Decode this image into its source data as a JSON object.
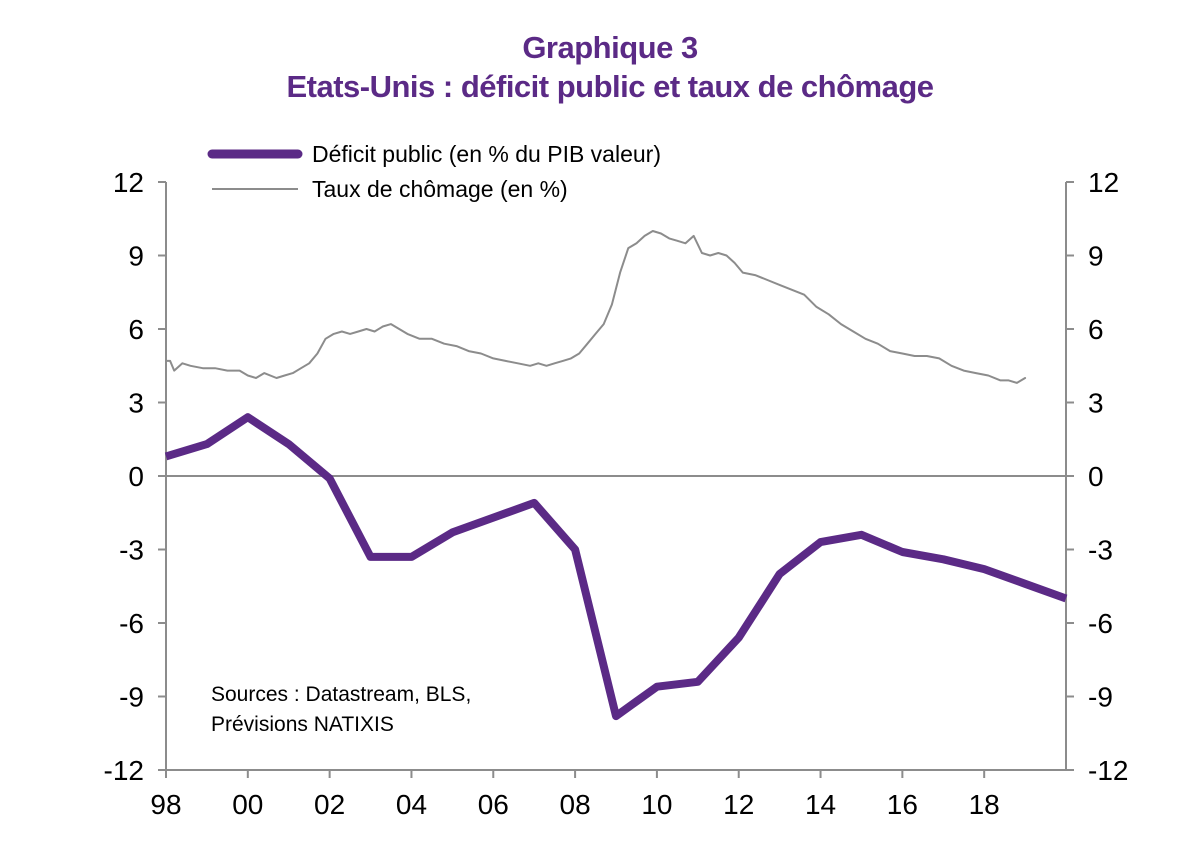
{
  "chart_data": {
    "type": "line",
    "title": "Graphique 3",
    "subtitle": "Etats-Unis : déficit public et taux de chômage",
    "xlabel": "",
    "ylabel": "",
    "x_ticks": [
      "98",
      "00",
      "02",
      "04",
      "06",
      "08",
      "10",
      "12",
      "14",
      "16",
      "18"
    ],
    "x_range": [
      1998,
      2020
    ],
    "ylim": [
      -12,
      12
    ],
    "y_ticks": [
      "12",
      "9",
      "6",
      "3",
      "0",
      "-3",
      "-6",
      "-9",
      "-12"
    ],
    "y_tick_values": [
      12,
      9,
      6,
      3,
      0,
      -3,
      -6,
      -9,
      -12
    ],
    "grid": false,
    "legend_position": "top-left",
    "annotation": [
      "Sources : Datastream, BLS,",
      "Prévisions NATIXIS"
    ],
    "series": [
      {
        "name": "Déficit public (en % du PIB valeur)",
        "color": "#5b2a86",
        "style": "thick",
        "x": [
          1998,
          1999,
          2000,
          2001,
          2002,
          2003,
          2004,
          2005,
          2006,
          2007,
          2008,
          2009,
          2010,
          2011,
          2012,
          2013,
          2014,
          2015,
          2016,
          2017,
          2018,
          2019,
          2020
        ],
        "values": [
          0.8,
          1.3,
          2.4,
          1.3,
          -0.1,
          -3.3,
          -3.3,
          -2.3,
          -1.7,
          -1.1,
          -3.0,
          -9.8,
          -8.6,
          -8.4,
          -6.6,
          -4.0,
          -2.7,
          -2.4,
          -3.1,
          -3.4,
          -3.8,
          -4.4,
          -5.0
        ]
      },
      {
        "name": "Taux de chômage (en %)",
        "color": "#8c8c8c",
        "style": "thin",
        "x": [
          1998.0,
          1998.1,
          1998.2,
          1998.4,
          1998.6,
          1998.9,
          1999.2,
          1999.5,
          1999.8,
          2000.0,
          2000.2,
          2000.4,
          2000.7,
          2000.9,
          2001.1,
          2001.3,
          2001.5,
          2001.7,
          2001.9,
          2002.1,
          2002.3,
          2002.5,
          2002.7,
          2002.9,
          2003.1,
          2003.3,
          2003.5,
          2003.7,
          2003.9,
          2004.2,
          2004.5,
          2004.8,
          2005.1,
          2005.4,
          2005.7,
          2006.0,
          2006.3,
          2006.6,
          2006.9,
          2007.1,
          2007.3,
          2007.5,
          2007.7,
          2007.9,
          2008.1,
          2008.3,
          2008.5,
          2008.7,
          2008.9,
          2009.1,
          2009.3,
          2009.5,
          2009.7,
          2009.9,
          2010.1,
          2010.3,
          2010.5,
          2010.7,
          2010.9,
          2011.1,
          2011.3,
          2011.5,
          2011.7,
          2011.9,
          2012.1,
          2012.4,
          2012.7,
          2013.0,
          2013.3,
          2013.6,
          2013.9,
          2014.2,
          2014.5,
          2014.8,
          2015.1,
          2015.4,
          2015.7,
          2016.0,
          2016.3,
          2016.6,
          2016.9,
          2017.2,
          2017.5,
          2017.8,
          2018.1,
          2018.4,
          2018.6,
          2018.8,
          2019.0
        ],
        "values": [
          4.7,
          4.7,
          4.3,
          4.6,
          4.5,
          4.4,
          4.4,
          4.3,
          4.3,
          4.1,
          4.0,
          4.2,
          4.0,
          4.1,
          4.2,
          4.4,
          4.6,
          5.0,
          5.6,
          5.8,
          5.9,
          5.8,
          5.9,
          6.0,
          5.9,
          6.1,
          6.2,
          6.0,
          5.8,
          5.6,
          5.6,
          5.4,
          5.3,
          5.1,
          5.0,
          4.8,
          4.7,
          4.6,
          4.5,
          4.6,
          4.5,
          4.6,
          4.7,
          4.8,
          5.0,
          5.4,
          5.8,
          6.2,
          7.0,
          8.3,
          9.3,
          9.5,
          9.8,
          10.0,
          9.9,
          9.7,
          9.6,
          9.5,
          9.8,
          9.1,
          9.0,
          9.1,
          9.0,
          8.7,
          8.3,
          8.2,
          8.0,
          7.8,
          7.6,
          7.4,
          6.9,
          6.6,
          6.2,
          5.9,
          5.6,
          5.4,
          5.1,
          5.0,
          4.9,
          4.9,
          4.8,
          4.5,
          4.3,
          4.2,
          4.1,
          3.9,
          3.9,
          3.8,
          4.0
        ]
      }
    ]
  }
}
